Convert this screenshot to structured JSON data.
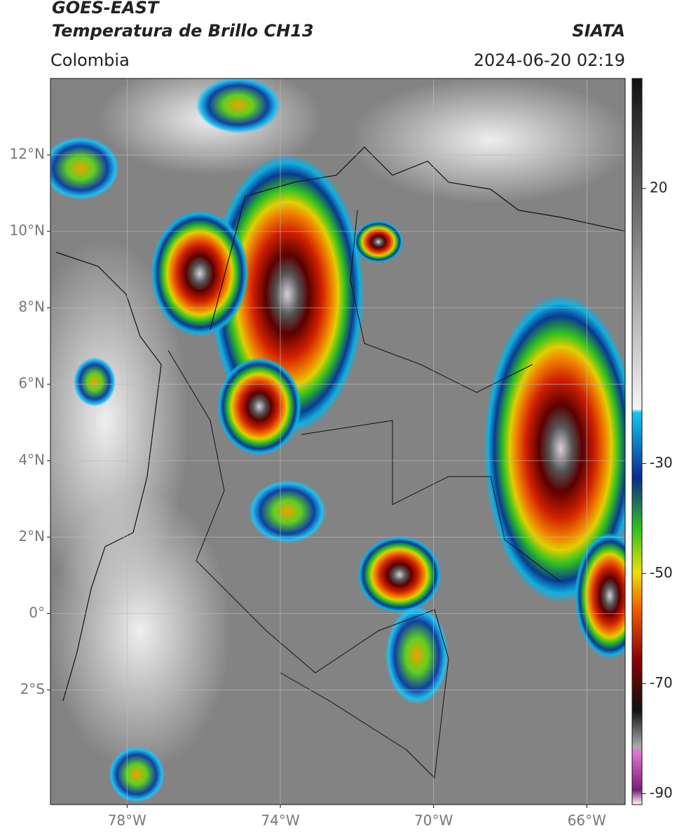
{
  "header": {
    "title": "GOES-EAST",
    "subtitle": "Temperatura de Brillo CH13",
    "source": "SIATA",
    "region": "Colombia",
    "timestamp": "2024-06-20 02:19"
  },
  "map": {
    "xlim": [
      -80,
      -65
    ],
    "ylim": [
      -5,
      14
    ],
    "xticks": [
      {
        "value": -78,
        "label": "78°W"
      },
      {
        "value": -74,
        "label": "74°W"
      },
      {
        "value": -70,
        "label": "70°W"
      },
      {
        "value": -66,
        "label": "66°W"
      }
    ],
    "yticks": [
      {
        "value": 12,
        "label": "12°N"
      },
      {
        "value": 10,
        "label": "10°N"
      },
      {
        "value": 8,
        "label": "8°N"
      },
      {
        "value": 6,
        "label": "6°N"
      },
      {
        "value": 4,
        "label": "4°N"
      },
      {
        "value": 2,
        "label": "2°N"
      },
      {
        "value": 0,
        "label": "0°"
      },
      {
        "value": -2,
        "label": "2°S"
      }
    ],
    "grid": true
  },
  "colorbar": {
    "lim": [
      -92,
      40
    ],
    "ticks": [
      20,
      -30,
      -50,
      -70,
      -90
    ]
  }
}
